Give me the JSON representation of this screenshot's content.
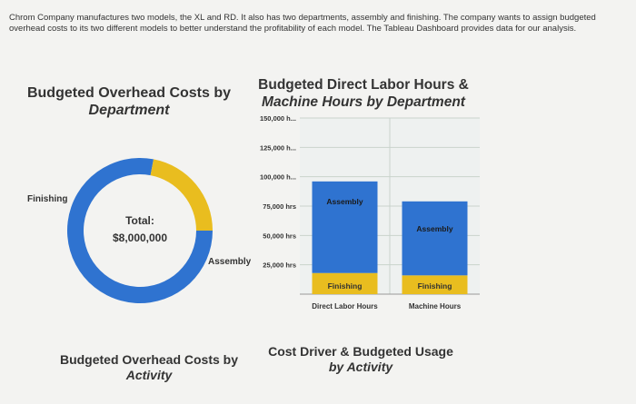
{
  "intro_text": "Chrom Company manufactures two models, the XL and RD. It also has two departments, assembly and finishing. The company wants to assign budgeted overhead costs to its two different models to better understand the profitability of each model. The Tableau Dashboard provides data for our analysis.",
  "panel1": {
    "title_line1": "Budgeted Overhead Costs by",
    "title_line2": "Department"
  },
  "panel2": {
    "title_line1": "Budgeted Direct Labor Hours &",
    "title_line2": "Machine Hours by Department"
  },
  "panel3": {
    "title_line1": "Budgeted Overhead Costs by",
    "title_line2": "Activity"
  },
  "panel4": {
    "title_line1": "Cost Driver & Budgeted Usage",
    "title_line2": "by Activity"
  },
  "colors": {
    "assembly": "#2f73d0",
    "finishing": "#e9bd1f"
  },
  "chart_data": [
    {
      "type": "pie",
      "center_label_line1": "Total:",
      "center_label_line2": "$8,000,000",
      "slices": [
        {
          "label": "Assembly",
          "value": 0.78
        },
        {
          "label": "Finishing",
          "value": 0.22
        }
      ]
    },
    {
      "type": "bar",
      "stacked": true,
      "categories": [
        "Direct Labor Hours",
        "Machine Hours"
      ],
      "series": [
        {
          "name": "Finishing",
          "values": [
            18000,
            16000
          ]
        },
        {
          "name": "Assembly",
          "values": [
            78000,
            63000
          ]
        }
      ],
      "ylim": [
        0,
        150000
      ],
      "y_ticks": [
        {
          "value": 25000,
          "label": "25,000 hrs"
        },
        {
          "value": 50000,
          "label": "50,000 hrs"
        },
        {
          "value": 75000,
          "label": "75,000 hrs"
        },
        {
          "value": 100000,
          "label": "100,000 h..."
        },
        {
          "value": 125000,
          "label": "125,000 h..."
        },
        {
          "value": 150000,
          "label": "150,000 h..."
        }
      ],
      "grid": true
    }
  ]
}
